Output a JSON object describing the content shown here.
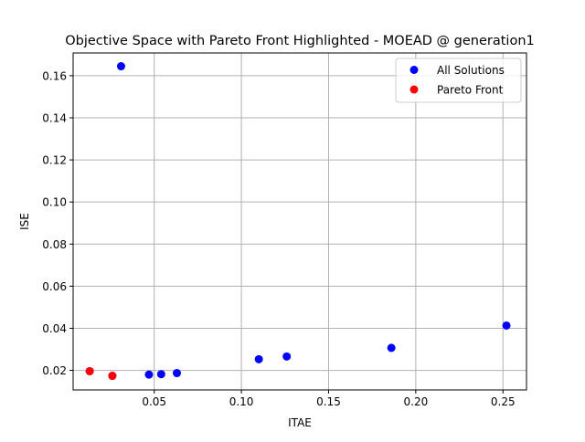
{
  "chart_data": {
    "type": "scatter",
    "title": "Objective Space with Pareto Front Highlighted - MOEAD @ generation1",
    "xlabel": "ITAE",
    "ylabel": "ISE",
    "xlim": [
      0.0035,
      0.2635
    ],
    "ylim": [
      0.0107,
      0.1708
    ],
    "x_ticks": [
      0.05,
      0.1,
      0.15,
      0.2,
      0.25
    ],
    "x_tick_labels": [
      "0.05",
      "0.10",
      "0.15",
      "0.20",
      "0.25"
    ],
    "y_ticks": [
      0.02,
      0.04,
      0.06,
      0.08,
      0.1,
      0.12,
      0.14,
      0.16
    ],
    "y_tick_labels": [
      "0.02",
      "0.04",
      "0.06",
      "0.08",
      "0.10",
      "0.12",
      "0.14",
      "0.16"
    ],
    "grid": true,
    "legend_position": "upper-right",
    "series": [
      {
        "name": "All Solutions",
        "color": "#0000ff",
        "points": [
          {
            "x": 0.031,
            "y": 0.1645
          },
          {
            "x": 0.047,
            "y": 0.018
          },
          {
            "x": 0.054,
            "y": 0.0182
          },
          {
            "x": 0.063,
            "y": 0.0187
          },
          {
            "x": 0.11,
            "y": 0.0253
          },
          {
            "x": 0.126,
            "y": 0.0266
          },
          {
            "x": 0.186,
            "y": 0.0307
          },
          {
            "x": 0.252,
            "y": 0.0413
          },
          {
            "x": 0.013,
            "y": 0.0196
          },
          {
            "x": 0.026,
            "y": 0.0174
          }
        ]
      },
      {
        "name": "Pareto Front",
        "color": "#ff0000",
        "points": [
          {
            "x": 0.013,
            "y": 0.0196
          },
          {
            "x": 0.026,
            "y": 0.0174
          }
        ]
      }
    ]
  }
}
